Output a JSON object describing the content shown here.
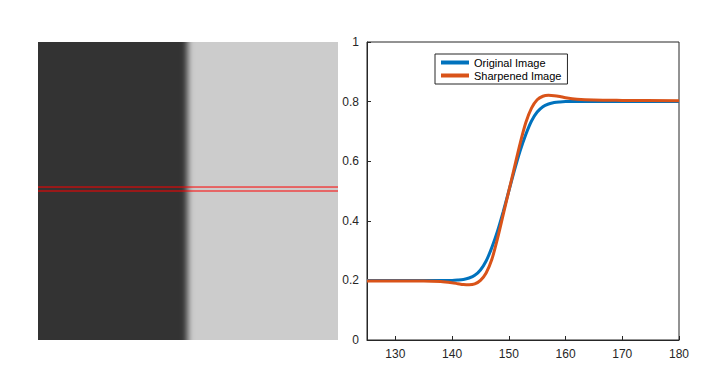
{
  "chart_data": [
    {
      "type": "image",
      "x": [
        0,
        140,
        141,
        142,
        143,
        144,
        145,
        146,
        147,
        148,
        149,
        150,
        151,
        152,
        153,
        154,
        155,
        156,
        157,
        158
      ],
      "values": [
        0.2,
        0.201,
        0.203,
        0.208,
        0.217,
        0.235,
        0.265,
        0.31,
        0.37,
        0.43,
        0.5,
        0.57,
        0.63,
        0.69,
        0.735,
        0.765,
        0.783,
        0.792,
        0.797,
        0.8
      ],
      "xlim": [
        0,
        300
      ],
      "ylim": [
        0,
        300
      ],
      "clim": [
        0,
        1
      ],
      "marked_rows": [
        146,
        150
      ],
      "color": "#ff0000",
      "tick_labels": false
    },
    {
      "type": "line",
      "x": [
        125,
        135,
        138,
        140,
        141,
        142,
        143,
        144,
        145,
        146,
        147,
        148,
        149,
        150,
        151,
        152,
        153,
        154,
        155,
        156,
        157,
        158,
        159,
        160,
        162,
        165,
        170,
        180
      ],
      "series": [
        {
          "name": "Original Image",
          "color": "#0072bd",
          "values": [
            0.2,
            0.2,
            0.2,
            0.2,
            0.201,
            0.203,
            0.208,
            0.217,
            0.235,
            0.265,
            0.31,
            0.365,
            0.43,
            0.5,
            0.57,
            0.635,
            0.69,
            0.735,
            0.765,
            0.783,
            0.792,
            0.797,
            0.799,
            0.8,
            0.8,
            0.8,
            0.8,
            0.8
          ]
        },
        {
          "name": "Sharpened Image",
          "color": "#d95319",
          "values": [
            0.198,
            0.198,
            0.196,
            0.192,
            0.189,
            0.186,
            0.185,
            0.188,
            0.2,
            0.225,
            0.27,
            0.34,
            0.42,
            0.5,
            0.58,
            0.66,
            0.73,
            0.778,
            0.806,
            0.818,
            0.821,
            0.82,
            0.817,
            0.813,
            0.808,
            0.805,
            0.804,
            0.803
          ]
        }
      ],
      "xlim": [
        125,
        180
      ],
      "xticks": [
        130,
        140,
        150,
        160,
        170,
        180
      ],
      "ylim": [
        0,
        1
      ],
      "yticks": [
        0,
        0.2,
        0.4,
        0.6,
        0.8,
        1
      ],
      "legend": "top",
      "grid": false
    }
  ]
}
